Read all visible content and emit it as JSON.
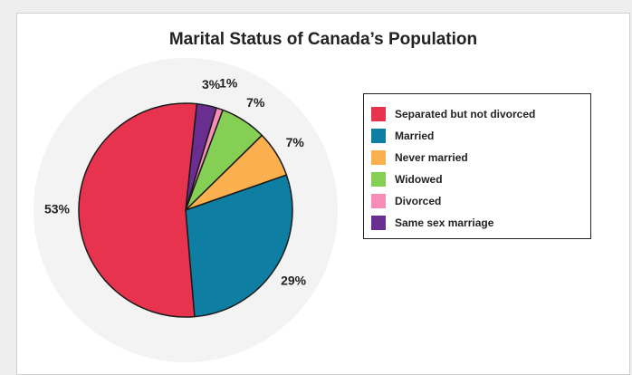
{
  "chart_data": {
    "type": "pie",
    "title": "Marital Status of Canada’s Population",
    "slices": [
      {
        "name": "Separated but not divorced",
        "value": 53,
        "label": "53%",
        "color": "#e8334f"
      },
      {
        "name": "Married",
        "value": 29,
        "label": "29%",
        "color": "#0e7ea3"
      },
      {
        "name": "Never married",
        "value": 7,
        "label": "7%",
        "color": "#fbb04f"
      },
      {
        "name": "Widowed",
        "value": 7,
        "label": "7%",
        "color": "#86cf55"
      },
      {
        "name": "Divorced",
        "value": 1,
        "label": "1%",
        "color": "#f78cb7"
      },
      {
        "name": "Same sex marriage",
        "value": 3,
        "label": "3%",
        "color": "#6a2e91"
      }
    ],
    "legend_position": "right"
  }
}
